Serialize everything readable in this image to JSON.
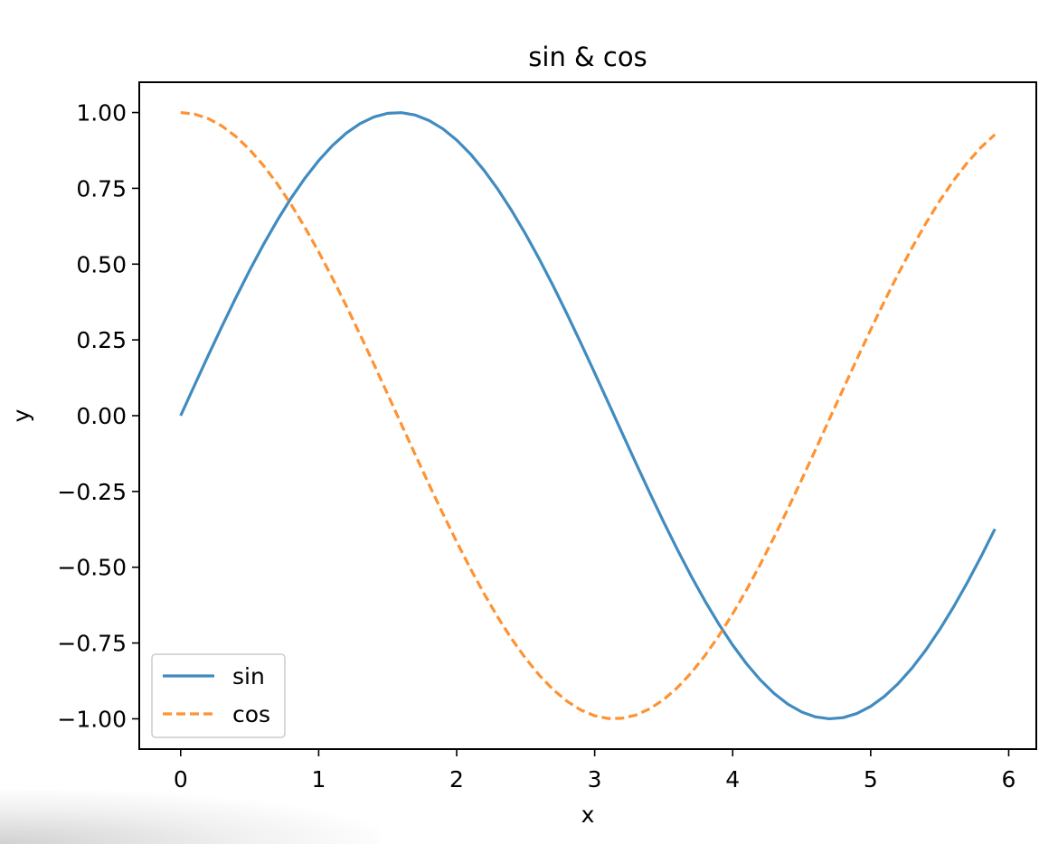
{
  "chart_data": {
    "type": "line",
    "title": "sin & cos",
    "xlabel": "x",
    "ylabel": "y",
    "xlim": [
      -0.3,
      6.2
    ],
    "ylim": [
      -1.1,
      1.1
    ],
    "xticks": [
      0,
      1,
      2,
      3,
      4,
      5,
      6
    ],
    "xtick_labels": [
      "0",
      "1",
      "2",
      "3",
      "4",
      "5",
      "6"
    ],
    "yticks": [
      1.0,
      0.75,
      0.5,
      0.25,
      0.0,
      -0.25,
      -0.5,
      -0.75,
      -1.0
    ],
    "ytick_labels": [
      "1.00",
      "0.75",
      "0.50",
      "0.25",
      "0.00",
      "−0.25",
      "−0.50",
      "−0.75",
      "−1.00"
    ],
    "grid": false,
    "legend_position": "lower-left",
    "x": [
      0.0,
      0.1,
      0.2,
      0.3,
      0.4,
      0.5,
      0.6,
      0.7,
      0.8,
      0.9,
      1.0,
      1.1,
      1.2,
      1.3,
      1.4,
      1.5,
      1.6,
      1.7,
      1.8,
      1.9,
      2.0,
      2.1,
      2.2,
      2.3,
      2.4,
      2.5,
      2.6,
      2.7,
      2.8,
      2.9,
      3.0,
      3.1,
      3.2,
      3.3,
      3.4,
      3.5,
      3.6,
      3.7,
      3.8,
      3.9,
      4.0,
      4.1,
      4.2,
      4.3,
      4.4,
      4.5,
      4.6,
      4.7,
      4.8,
      4.9,
      5.0,
      5.1,
      5.2,
      5.3,
      5.4,
      5.5,
      5.6,
      5.7,
      5.8,
      5.9
    ],
    "series": [
      {
        "name": "sin",
        "color": "#1f77b4",
        "style": "solid",
        "values": [
          0.0,
          0.0998,
          0.1987,
          0.2955,
          0.3894,
          0.4794,
          0.5646,
          0.6442,
          0.7174,
          0.7833,
          0.8415,
          0.8912,
          0.932,
          0.9636,
          0.9854,
          0.9975,
          0.9996,
          0.9917,
          0.9738,
          0.9463,
          0.9093,
          0.8632,
          0.8085,
          0.7457,
          0.6755,
          0.5985,
          0.5155,
          0.4274,
          0.335,
          0.2392,
          0.1411,
          0.0416,
          -0.0584,
          -0.1577,
          -0.2555,
          -0.3508,
          -0.4425,
          -0.5298,
          -0.6119,
          -0.6878,
          -0.7568,
          -0.8183,
          -0.8716,
          -0.9162,
          -0.9516,
          -0.9775,
          -0.9937,
          -0.9999,
          -0.9962,
          -0.9825,
          -0.9589,
          -0.9258,
          -0.8835,
          -0.8323,
          -0.7728,
          -0.7055,
          -0.6313,
          -0.5507,
          -0.4646,
          -0.3739
        ]
      },
      {
        "name": "cos",
        "color": "#ff7f0e",
        "style": "dashed",
        "values": [
          1.0,
          0.995,
          0.9801,
          0.9553,
          0.9211,
          0.8776,
          0.8253,
          0.7648,
          0.6967,
          0.6216,
          0.5403,
          0.4536,
          0.3624,
          0.2675,
          0.17,
          0.0707,
          -0.0292,
          -0.1288,
          -0.2272,
          -0.3233,
          -0.4161,
          -0.5048,
          -0.5885,
          -0.6663,
          -0.7374,
          -0.8011,
          -0.8569,
          -0.9041,
          -0.9422,
          -0.971,
          -0.99,
          -0.9991,
          -0.9983,
          -0.9875,
          -0.9668,
          -0.9365,
          -0.8968,
          -0.8481,
          -0.791,
          -0.7259,
          -0.6536,
          -0.5748,
          -0.4903,
          -0.4008,
          -0.3073,
          -0.2108,
          -0.1122,
          -0.0124,
          0.0875,
          0.1865,
          0.2837,
          0.378,
          0.4685,
          0.5544,
          0.6347,
          0.7087,
          0.7756,
          0.8347,
          0.8855,
          0.9275
        ]
      }
    ]
  }
}
